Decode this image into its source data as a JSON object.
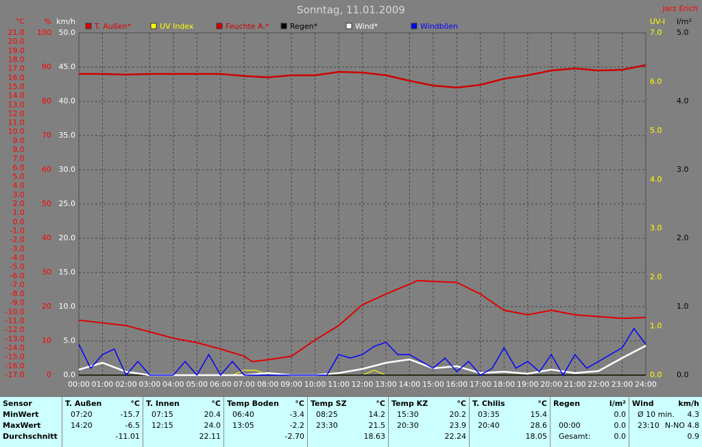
{
  "chart_data": {
    "type": "line",
    "title": "Sonntag, 11.01.2009",
    "author": "Jarz Erich",
    "grid": true,
    "xlim": [
      0,
      24
    ],
    "xticks": [
      {
        "value": 0,
        "label": "00:00"
      },
      {
        "value": 1,
        "label": "01:00"
      },
      {
        "value": 2,
        "label": "02:00"
      },
      {
        "value": 3,
        "label": "03:00"
      },
      {
        "value": 4,
        "label": "04:00"
      },
      {
        "value": 5,
        "label": "05:00"
      },
      {
        "value": 6,
        "label": "06:00"
      },
      {
        "value": 7,
        "label": "07:00"
      },
      {
        "value": 8,
        "label": "08:00"
      },
      {
        "value": 9,
        "label": "09:00"
      },
      {
        "value": 10,
        "label": "10:00"
      },
      {
        "value": 11,
        "label": "11:00"
      },
      {
        "value": 12,
        "label": "12:00"
      },
      {
        "value": 13,
        "label": "13:00"
      },
      {
        "value": 14,
        "label": "14:00"
      },
      {
        "value": 15,
        "label": "15:00"
      },
      {
        "value": 16,
        "label": "16:00"
      },
      {
        "value": 17,
        "label": "17:00"
      },
      {
        "value": 18,
        "label": "18:00"
      },
      {
        "value": 19,
        "label": "19:00"
      },
      {
        "value": 20,
        "label": "20:00"
      },
      {
        "value": 21,
        "label": "21:00"
      },
      {
        "value": 22,
        "label": "22:00"
      },
      {
        "value": 23,
        "label": "23:00"
      },
      {
        "value": 24,
        "label": "24:00"
      }
    ],
    "axes": [
      {
        "label": "°C",
        "side": "left",
        "color": "#ff0000",
        "lim": [
          -17,
          21
        ],
        "ticks": [
          {
            "value": 21,
            "label": "21.0"
          },
          {
            "value": 20,
            "label": "20.0"
          },
          {
            "value": 19,
            "label": "19.0"
          },
          {
            "value": 18,
            "label": "18.0"
          },
          {
            "value": 17,
            "label": "17.0"
          },
          {
            "value": 16,
            "label": "16.0"
          },
          {
            "value": 15,
            "label": "15.0"
          },
          {
            "value": 14,
            "label": "14.0"
          },
          {
            "value": 13,
            "label": "13.0"
          },
          {
            "value": 12,
            "label": "12.0"
          },
          {
            "value": 11,
            "label": "11.0"
          },
          {
            "value": 10,
            "label": "10.0"
          },
          {
            "value": 9,
            "label": "9.0"
          },
          {
            "value": 8,
            "label": "8.0"
          },
          {
            "value": 7,
            "label": "7.0"
          },
          {
            "value": 6,
            "label": "6.0"
          },
          {
            "value": 5,
            "label": "5.0"
          },
          {
            "value": 4,
            "label": "4.0"
          },
          {
            "value": 3,
            "label": "3.0"
          },
          {
            "value": 2,
            "label": "2.0"
          },
          {
            "value": 1,
            "label": "1.0"
          },
          {
            "value": 0,
            "label": "0.0"
          },
          {
            "value": -1,
            "label": "-1.0"
          },
          {
            "value": -2,
            "label": "-2.0"
          },
          {
            "value": -3,
            "label": "-3.0"
          },
          {
            "value": -4,
            "label": "-4.0"
          },
          {
            "value": -5,
            "label": "-5.0"
          },
          {
            "value": -6,
            "label": "-6.0"
          },
          {
            "value": -7,
            "label": "-7.0"
          },
          {
            "value": -8,
            "label": "-8.0"
          },
          {
            "value": -9,
            "label": "-9.0"
          },
          {
            "value": -10,
            "label": "-10.0"
          },
          {
            "value": -11,
            "label": "-11.0"
          },
          {
            "value": -12,
            "label": "-12.0"
          },
          {
            "value": -13,
            "label": "-13.0"
          },
          {
            "value": -14,
            "label": "-14.0"
          },
          {
            "value": -15,
            "label": "-15.0"
          },
          {
            "value": -16,
            "label": "-16.0"
          },
          {
            "value": -17,
            "label": "-17.0"
          }
        ]
      },
      {
        "label": "%",
        "side": "left",
        "color": "#ff0000",
        "lim": [
          0,
          100
        ],
        "ticks": [
          100,
          90,
          80,
          70,
          60,
          50,
          40,
          30,
          20,
          10,
          0
        ]
      },
      {
        "label": "km/h",
        "side": "left",
        "color": "#ffffff",
        "grid": true,
        "lim": [
          0,
          50
        ],
        "ticks": [
          {
            "value": 50,
            "label": "50.0"
          },
          {
            "value": 45,
            "label": "45.0"
          },
          {
            "value": 40,
            "label": "40.0"
          },
          {
            "value": 35,
            "label": "35.0"
          },
          {
            "value": 30,
            "label": "30.0"
          },
          {
            "value": 25,
            "label": "25.0"
          },
          {
            "value": 20,
            "label": "20.0"
          },
          {
            "value": 15,
            "label": "15.0"
          },
          {
            "value": 10,
            "label": "10.0"
          },
          {
            "value": 5,
            "label": "5.0"
          },
          {
            "value": 0,
            "label": "0.0"
          }
        ]
      },
      {
        "label": "UV-I",
        "side": "right",
        "color": "#ffff00",
        "lim": [
          0,
          7
        ],
        "ticks": [
          {
            "value": 7,
            "label": "7.0"
          },
          {
            "value": 6,
            "label": "6.0"
          },
          {
            "value": 5,
            "label": "5.0"
          },
          {
            "value": 4,
            "label": "4.0"
          },
          {
            "value": 3,
            "label": "3.0"
          },
          {
            "value": 2,
            "label": "2.0"
          },
          {
            "value": 1,
            "label": "1.0"
          },
          {
            "value": 0,
            "label": "0.0"
          }
        ]
      },
      {
        "label": "l/m²",
        "side": "right",
        "color": "#000000",
        "lim": [
          0,
          5
        ],
        "ticks": [
          {
            "value": 5,
            "label": "5.0"
          },
          {
            "value": 4,
            "label": "4.0"
          },
          {
            "value": 3,
            "label": "3.0"
          },
          {
            "value": 2,
            "label": "2.0"
          },
          {
            "value": 1,
            "label": "1.0"
          },
          {
            "value": 0,
            "label": "0.0"
          }
        ]
      }
    ],
    "series": [
      {
        "name": "T. Außen*",
        "color": "#e00000",
        "axis": 0,
        "x": [
          0,
          1,
          2,
          3,
          4,
          5,
          6,
          7,
          7.33,
          8,
          9,
          10,
          11,
          12,
          13,
          14,
          14.33,
          15,
          16,
          17,
          18,
          19,
          20,
          21,
          22,
          23,
          24
        ],
        "values": [
          -10.9,
          -11.2,
          -11.5,
          -12.2,
          -12.9,
          -13.4,
          -14.1,
          -14.9,
          -15.5,
          -15.3,
          -14.9,
          -13.1,
          -11.5,
          -9.2,
          -8.0,
          -6.9,
          -6.5,
          -6.6,
          -6.7,
          -8.0,
          -9.8,
          -10.3,
          -9.8,
          -10.3,
          -10.5,
          -10.7,
          -10.6
        ]
      },
      {
        "name": "UV Index",
        "color": "#ffff00",
        "axis": 3,
        "x": [
          0,
          6.5,
          7,
          7.5,
          8,
          12,
          12.5,
          13,
          24
        ],
        "values": [
          0,
          0,
          0.1,
          0.1,
          0,
          0,
          0.1,
          0,
          0
        ]
      },
      {
        "name": "Feuchte A.*",
        "color": "#d00000",
        "axis": 1,
        "x": [
          0,
          1,
          2,
          3,
          4,
          5,
          6,
          7,
          8,
          9,
          10,
          11,
          12,
          13,
          14,
          15,
          16,
          17,
          18,
          19,
          20,
          21,
          22,
          23,
          24
        ],
        "values": [
          88,
          88,
          87.8,
          88,
          88,
          88,
          88,
          87.4,
          87,
          87.6,
          87.6,
          88.6,
          88.4,
          87.6,
          86,
          84.6,
          84,
          84.8,
          86.6,
          87.6,
          89,
          89.6,
          89,
          89.2,
          90.6
        ]
      },
      {
        "name": "Regen*",
        "color": "#000000",
        "axis": 4,
        "x": [
          0,
          24
        ],
        "values": [
          0,
          0
        ]
      },
      {
        "name": "Wind*",
        "color": "#ffffff",
        "axis": 2,
        "x": [
          0,
          1,
          2,
          3,
          4,
          5,
          6,
          7,
          8,
          9,
          10,
          11,
          12,
          13,
          14,
          15,
          16,
          17,
          18,
          19,
          20,
          21,
          22,
          23,
          24
        ],
        "values": [
          0.8,
          1.8,
          0.5,
          0,
          0,
          0,
          0,
          0,
          0.3,
          0,
          0,
          0.3,
          0.9,
          1.8,
          2.3,
          1.0,
          1.3,
          0.3,
          0.5,
          0.2,
          0.8,
          0.3,
          0.6,
          2.5,
          4.3
        ]
      },
      {
        "name": "Windböen",
        "color": "#0000ff",
        "axis": 2,
        "x": [
          0,
          0.5,
          1,
          1.5,
          2,
          2.5,
          3,
          3.5,
          4,
          4.5,
          5,
          5.5,
          6,
          6.5,
          7,
          7.5,
          8,
          8.5,
          9,
          9.5,
          10,
          10.5,
          11,
          11.5,
          12,
          12.5,
          13,
          13.5,
          14,
          14.5,
          15,
          15.5,
          16,
          16.5,
          17,
          17.5,
          18,
          18.5,
          19,
          19.5,
          20,
          20.5,
          21,
          21.5,
          22,
          22.5,
          23,
          23.5,
          24
        ],
        "values": [
          4.5,
          1.0,
          3.0,
          3.8,
          0,
          2.0,
          0,
          0,
          0,
          2.0,
          0,
          3.0,
          0,
          2.0,
          0,
          0,
          0,
          0,
          0,
          0,
          0,
          0,
          3.0,
          2.5,
          3.0,
          4.2,
          4.8,
          3.0,
          3.0,
          2.0,
          1.0,
          2.5,
          0.5,
          2.0,
          0,
          1.0,
          4.0,
          1.0,
          2.0,
          0.5,
          3.0,
          0,
          3.0,
          1.0,
          2.0,
          3.0,
          4.0,
          6.8,
          4.5
        ]
      }
    ]
  },
  "table": {
    "header": "Sensor",
    "row_labels": [
      "MinWert",
      "MaxWert",
      "Durchschnitt"
    ],
    "columns": [
      {
        "name": "T. Außen",
        "unit": "°C",
        "rows": [
          [
            "07:20",
            "-15.7"
          ],
          [
            "14:20",
            "-6.5"
          ],
          [
            null,
            "-11.01"
          ]
        ]
      },
      {
        "name": "T. Innen",
        "unit": "°C",
        "rows": [
          [
            "07:15",
            "20.4"
          ],
          [
            "12:15",
            "24.0"
          ],
          [
            null,
            "22.11"
          ]
        ]
      },
      {
        "name": "Temp Boden",
        "unit": "°C",
        "rows": [
          [
            "06:40",
            "-3.4"
          ],
          [
            "13:05",
            "-2.2"
          ],
          [
            null,
            "-2.70"
          ]
        ]
      },
      {
        "name": "Temp SZ",
        "unit": "°C",
        "rows": [
          [
            "08:25",
            "14.2"
          ],
          [
            "23:30",
            "21.5"
          ],
          [
            null,
            "18.63"
          ]
        ]
      },
      {
        "name": "Temp KZ",
        "unit": "°C",
        "rows": [
          [
            "15:30",
            "20.2"
          ],
          [
            "20:30",
            "23.9"
          ],
          [
            null,
            "22.24"
          ]
        ]
      },
      {
        "name": "T. Chilis",
        "unit": "°C",
        "rows": [
          [
            "03:35",
            "15.4"
          ],
          [
            "20:40",
            "28.6"
          ],
          [
            null,
            "18.05"
          ]
        ]
      },
      {
        "name": "Regen",
        "unit": "l/m²",
        "rows": [
          [
            null,
            "0.0"
          ],
          [
            "00:00",
            "0.0"
          ],
          [
            "Gesamt:",
            "0.0"
          ]
        ]
      },
      {
        "name": "Wind",
        "unit": "km/h",
        "rows": [
          [
            "Ø 10 min.",
            "4.3"
          ],
          [
            "23:10",
            "N-NO 4.8"
          ],
          [
            null,
            "0.9"
          ]
        ]
      }
    ]
  }
}
